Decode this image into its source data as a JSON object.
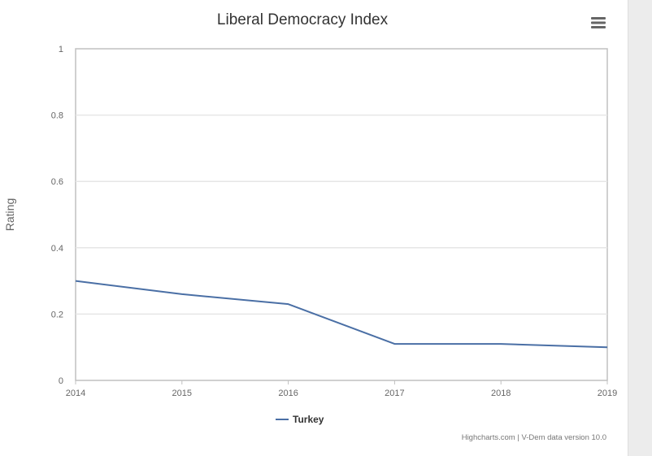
{
  "chart_data": {
    "type": "line",
    "title": "Liberal Democracy Index",
    "xlabel": "",
    "ylabel": "Rating",
    "x": [
      2014,
      2015,
      2016,
      2017,
      2018,
      2019
    ],
    "series": [
      {
        "name": "Turkey",
        "values": [
          0.3,
          0.26,
          0.23,
          0.11,
          0.11,
          0.1
        ]
      }
    ],
    "xlim": [
      2014,
      2019
    ],
    "ylim": [
      0,
      1
    ],
    "yticks": [
      "0",
      "0.2",
      "0.4",
      "0.6",
      "0.8",
      "1"
    ],
    "xticks": [
      "2014",
      "2015",
      "2016",
      "2017",
      "2018",
      "2019"
    ],
    "grid": true,
    "legend_position": "bottom-center"
  },
  "colors": {
    "series": "#4a6fa5",
    "grid": "#e6e6e6",
    "axis": "#c0c0c0"
  },
  "credits": {
    "text": "Highcharts.com | V-Dem data version 10.0"
  },
  "menu": {
    "icon": "hamburger-menu-icon"
  }
}
